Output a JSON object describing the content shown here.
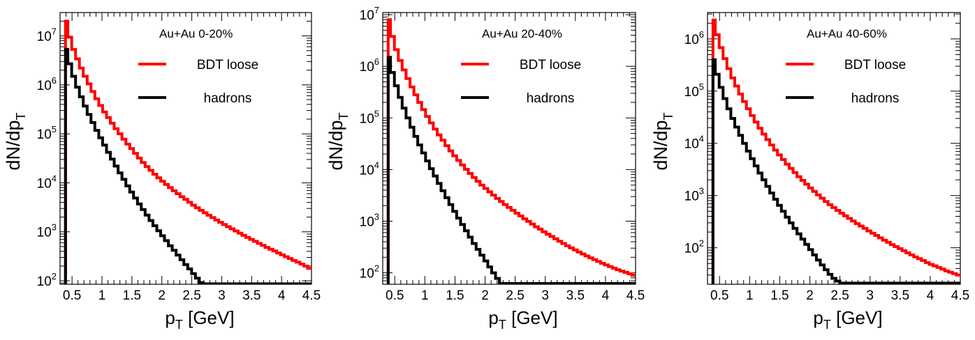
{
  "chart_data": [
    {
      "type": "histogram",
      "title": "Au+Au 0-20%",
      "xlabel": "p_T [GeV]",
      "ylabel": "dN/dp_T",
      "yscale": "log",
      "xlim": [
        0.3,
        4.5
      ],
      "ylim": [
        85,
        30000000
      ],
      "xticks": [
        "0.5",
        "1",
        "1.5",
        "2",
        "2.5",
        "3",
        "3.5",
        "4",
        "4.5"
      ],
      "yticks": [
        {
          "base": "10",
          "exp": "2",
          "value": 100
        },
        {
          "base": "10",
          "exp": "3",
          "value": 1000
        },
        {
          "base": "10",
          "exp": "4",
          "value": 10000
        },
        {
          "base": "10",
          "exp": "5",
          "value": 100000
        },
        {
          "base": "10",
          "exp": "6",
          "value": 1000000
        },
        {
          "base": "10",
          "exp": "7",
          "value": 10000000
        }
      ],
      "legend_position": "top-right",
      "series": [
        {
          "name": "BDT loose",
          "color": "#ff0000",
          "values": [
            20000000,
            20000000,
            9400000,
            5300000,
            3400000,
            2200000,
            1500000,
            1050000,
            730000,
            520000,
            380000,
            280000,
            215000,
            165000,
            127000,
            100000,
            78000,
            62000,
            50000,
            40000,
            32000,
            26000,
            21500,
            18000,
            15000,
            12700,
            10800,
            9300,
            8000,
            6900,
            6000,
            5200,
            4600,
            4000,
            3500,
            3100,
            2750,
            2450,
            2180,
            1950,
            1750,
            1570,
            1410,
            1270,
            1150,
            1040,
            940,
            850,
            770,
            700,
            640,
            580,
            530,
            480,
            440,
            405,
            370,
            340,
            310,
            285,
            260,
            240,
            220,
            200,
            180
          ]
        },
        {
          "name": "hadrons",
          "color": "#000000",
          "values": [
            5300000,
            5300000,
            2700000,
            1500000,
            900000,
            570000,
            370000,
            250000,
            170000,
            118000,
            83000,
            59000,
            42000,
            30500,
            22000,
            16000,
            11800,
            8700,
            6500,
            4900,
            3700,
            2850,
            2200,
            1700,
            1330,
            1050,
            830,
            660,
            520,
            420,
            335,
            270,
            215,
            175,
            140,
            113,
            92,
            85,
            85,
            85,
            85,
            85,
            85,
            85,
            85,
            85,
            85,
            85,
            85,
            85,
            85,
            85,
            85,
            85,
            85,
            85,
            85,
            85,
            85,
            85,
            85,
            85,
            85,
            85,
            85
          ]
        }
      ]
    },
    {
      "type": "histogram",
      "title": "Au+Au 20-40%",
      "xlabel": "p_T [GeV]",
      "ylabel": "dN/dp_T",
      "yscale": "log",
      "xlim": [
        0.3,
        4.5
      ],
      "ylim": [
        60,
        11000000
      ],
      "xticks": [
        "0.5",
        "1",
        "1.5",
        "2",
        "2.5",
        "3",
        "3.5",
        "4",
        "4.5"
      ],
      "yticks": [
        {
          "base": "10",
          "exp": "2",
          "value": 100
        },
        {
          "base": "10",
          "exp": "3",
          "value": 1000
        },
        {
          "base": "10",
          "exp": "4",
          "value": 10000
        },
        {
          "base": "10",
          "exp": "5",
          "value": 100000
        },
        {
          "base": "10",
          "exp": "6",
          "value": 1000000
        },
        {
          "base": "10",
          "exp": "7",
          "value": 10000000
        }
      ],
      "legend_position": "top-right",
      "series": [
        {
          "name": "BDT loose",
          "color": "#ff0000",
          "values": [
            8000000,
            8000000,
            3800000,
            2100000,
            1300000,
            850000,
            580000,
            400000,
            280000,
            200000,
            145000,
            107000,
            80000,
            61000,
            47000,
            37000,
            29000,
            23000,
            18500,
            15000,
            12300,
            10100,
            8400,
            7000,
            5900,
            5000,
            4300,
            3700,
            3200,
            2750,
            2400,
            2100,
            1850,
            1620,
            1430,
            1260,
            1110,
            990,
            880,
            780,
            700,
            625,
            560,
            505,
            455,
            410,
            370,
            335,
            305,
            278,
            253,
            232,
            212,
            195,
            180,
            166,
            153,
            142,
            132,
            123,
            115,
            108,
            102,
            96,
            90
          ]
        },
        {
          "name": "hadrons",
          "color": "#000000",
          "values": [
            1500000,
            1500000,
            760000,
            420000,
            250000,
            155000,
            100000,
            66000,
            44000,
            30000,
            21000,
            14700,
            10400,
            7500,
            5400,
            3900,
            2850,
            2100,
            1550,
            1150,
            860,
            650,
            490,
            370,
            285,
            220,
            170,
            130,
            100,
            78,
            62,
            62,
            62,
            62,
            62,
            62,
            62,
            62,
            62,
            62,
            62,
            62,
            62,
            62,
            62,
            62,
            62,
            62,
            62,
            62,
            62,
            62,
            62,
            62,
            62,
            62,
            62,
            62,
            62,
            62,
            62,
            62,
            62,
            62,
            62
          ]
        }
      ]
    },
    {
      "type": "histogram",
      "title": "Au+Au 40-60%",
      "xlabel": "p_T [GeV]",
      "ylabel": "dN/dp_T",
      "yscale": "log",
      "xlim": [
        0.3,
        4.5
      ],
      "ylim": [
        20,
        3200000
      ],
      "xticks": [
        "0.5",
        "1",
        "1.5",
        "2",
        "2.5",
        "3",
        "3.5",
        "4",
        "4.5"
      ],
      "yticks": [
        {
          "base": "10",
          "exp": "2",
          "value": 100
        },
        {
          "base": "10",
          "exp": "3",
          "value": 1000
        },
        {
          "base": "10",
          "exp": "4",
          "value": 10000
        },
        {
          "base": "10",
          "exp": "5",
          "value": 100000
        },
        {
          "base": "10",
          "exp": "6",
          "value": 1000000
        }
      ],
      "legend_position": "top-right",
      "series": [
        {
          "name": "BDT loose",
          "color": "#ff0000",
          "values": [
            2300000,
            2300000,
            1200000,
            680000,
            420000,
            270000,
            180000,
            125000,
            88000,
            63000,
            46000,
            34000,
            25500,
            19500,
            15000,
            11800,
            9300,
            7400,
            6000,
            4900,
            4000,
            3300,
            2750,
            2300,
            1950,
            1650,
            1400,
            1200,
            1030,
            890,
            770,
            670,
            590,
            520,
            460,
            410,
            365,
            325,
            290,
            260,
            235,
            210,
            190,
            172,
            155,
            140,
            127,
            115,
            105,
            96,
            88,
            80,
            73,
            67,
            62,
            57,
            52,
            48,
            45,
            42,
            39,
            36,
            34,
            32,
            30
          ]
        },
        {
          "name": "hadrons",
          "color": "#000000",
          "values": [
            400000,
            400000,
            210000,
            118000,
            72000,
            46000,
            30000,
            20500,
            14200,
            10000,
            7100,
            5100,
            3700,
            2700,
            2000,
            1500,
            1120,
            850,
            650,
            500,
            385,
            300,
            235,
            185,
            146,
            116,
            92,
            73,
            58,
            47,
            38,
            31,
            26,
            23,
            21,
            21,
            21,
            21,
            21,
            21,
            21,
            21,
            21,
            21,
            21,
            21,
            21,
            21,
            21,
            21,
            21,
            21,
            21,
            21,
            21,
            21,
            21,
            21,
            21,
            21,
            21,
            21,
            21,
            21,
            21
          ]
        }
      ]
    }
  ]
}
